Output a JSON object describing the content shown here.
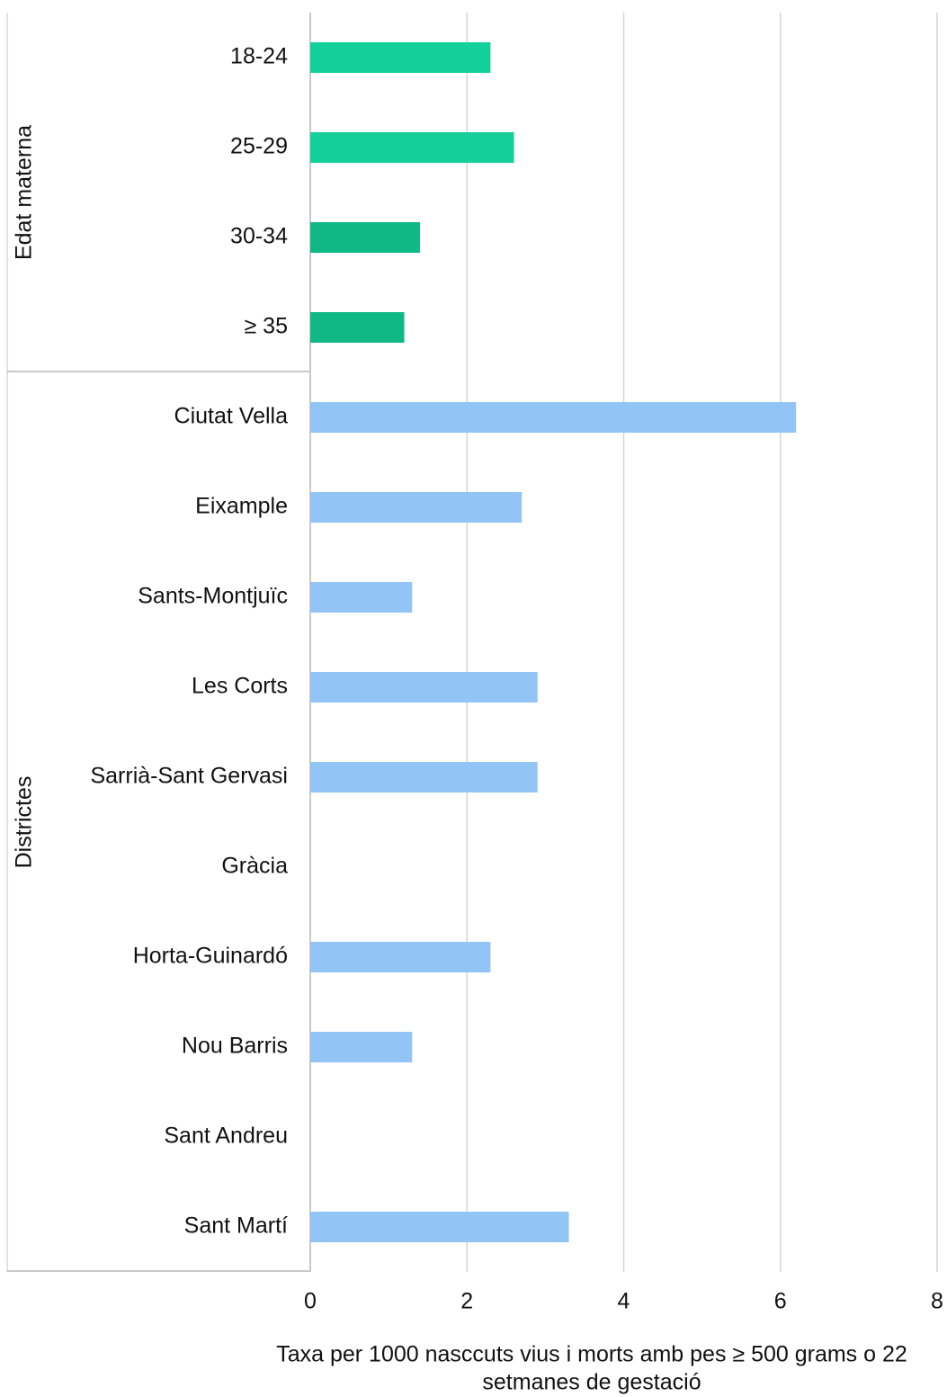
{
  "chart_data": {
    "type": "bar",
    "orientation": "horizontal",
    "groups": [
      {
        "label": "Edat materna",
        "categories": [
          "18-24",
          "25-29",
          "30-34",
          "≥ 35"
        ],
        "values": [
          2.3,
          2.6,
          1.4,
          1.2
        ],
        "colors": [
          "#13cf9a",
          "#13cf9a",
          "#10b886",
          "#10b886"
        ]
      },
      {
        "label": "Districtes",
        "categories": [
          "Ciutat Vella",
          "Eixample",
          "Sants-Montjuïc",
          "Les Corts",
          "Sarrià-Sant Gervasi",
          "Gràcia",
          "Horta-Guinardó",
          "Nou Barris",
          "Sant Andreu",
          "Sant Martí"
        ],
        "values": [
          6.2,
          2.7,
          1.3,
          2.9,
          2.9,
          0,
          2.3,
          1.3,
          0,
          3.3
        ],
        "colors": [
          "#92c5f5",
          "#92c5f5",
          "#92c5f5",
          "#92c5f5",
          "#92c5f5",
          "#92c5f5",
          "#92c5f5",
          "#92c5f5",
          "#92c5f5",
          "#92c5f5"
        ]
      }
    ],
    "x_label": [
      "Taxa per 1000 nasccuts vius i morts amb pes ≥ 500 grams o 22",
      "setmanes de gestació"
    ],
    "xlim": [
      0,
      8
    ],
    "xticks": [
      0,
      2,
      4,
      6,
      8
    ],
    "grid": true
  }
}
